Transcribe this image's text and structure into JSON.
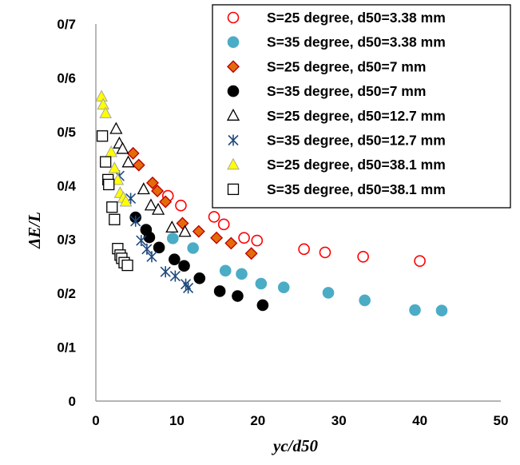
{
  "chart_data": {
    "type": "scatter",
    "title": "",
    "xlabel": "yc/d50",
    "ylabel": "ΔE/L",
    "xlim": [
      0,
      50
    ],
    "ylim": [
      0,
      0.7
    ],
    "x_ticks": [
      0,
      10,
      20,
      30,
      40,
      50
    ],
    "y_ticks": [
      {
        "value": 0,
        "label": "0"
      },
      {
        "value": 0.1,
        "label": "0/1"
      },
      {
        "value": 0.2,
        "label": "0/2"
      },
      {
        "value": 0.3,
        "label": "0/3"
      },
      {
        "value": 0.4,
        "label": "0/4"
      },
      {
        "value": 0.5,
        "label": "0/5"
      },
      {
        "value": 0.6,
        "label": "0/6"
      },
      {
        "value": 0.7,
        "label": "0/7"
      }
    ],
    "grid": false,
    "legend_position": "top-right",
    "series": [
      {
        "name": "S=25 degree, d50=3.38 mm",
        "marker": "circle-open",
        "color": "#ff0000",
        "points": [
          [
            8.9,
            0.381
          ],
          [
            10.5,
            0.363
          ],
          [
            14.6,
            0.342
          ],
          [
            15.8,
            0.328
          ],
          [
            18.3,
            0.303
          ],
          [
            19.9,
            0.298
          ],
          [
            25.7,
            0.282
          ],
          [
            28.3,
            0.276
          ],
          [
            33.0,
            0.268
          ],
          [
            40.0,
            0.26
          ]
        ]
      },
      {
        "name": "S=35 degree, d50=3.38 mm",
        "marker": "circle-filled",
        "color": "#4bacc6",
        "points": [
          [
            9.5,
            0.302
          ],
          [
            12.0,
            0.284
          ],
          [
            16.0,
            0.242
          ],
          [
            18.0,
            0.236
          ],
          [
            20.4,
            0.218
          ],
          [
            23.2,
            0.211
          ],
          [
            28.7,
            0.201
          ],
          [
            33.2,
            0.187
          ],
          [
            39.4,
            0.169
          ],
          [
            42.7,
            0.168
          ]
        ]
      },
      {
        "name": "S=25 degree, d50=7 mm",
        "marker": "diamond",
        "color": "#e36c09",
        "edge": "#c00000",
        "points": [
          [
            4.6,
            0.46
          ],
          [
            5.3,
            0.438
          ],
          [
            7.0,
            0.405
          ],
          [
            7.6,
            0.39
          ],
          [
            8.6,
            0.37
          ],
          [
            10.7,
            0.33
          ],
          [
            12.7,
            0.315
          ],
          [
            14.9,
            0.303
          ],
          [
            16.7,
            0.293
          ],
          [
            19.2,
            0.274
          ]
        ]
      },
      {
        "name": "S=35 degree, d50=7 mm",
        "marker": "circle-filled",
        "color": "#000000",
        "points": [
          [
            4.9,
            0.341
          ],
          [
            6.2,
            0.318
          ],
          [
            6.6,
            0.304
          ],
          [
            7.8,
            0.285
          ],
          [
            9.7,
            0.263
          ],
          [
            10.9,
            0.251
          ],
          [
            12.8,
            0.228
          ],
          [
            15.3,
            0.204
          ],
          [
            17.5,
            0.195
          ],
          [
            20.6,
            0.178
          ]
        ]
      },
      {
        "name": "S=25 degree, d50=12.7 mm",
        "marker": "triangle-open",
        "color": "#000000",
        "points": [
          [
            2.5,
            0.505
          ],
          [
            2.9,
            0.478
          ],
          [
            3.3,
            0.468
          ],
          [
            4.0,
            0.443
          ],
          [
            5.9,
            0.393
          ],
          [
            6.8,
            0.363
          ],
          [
            7.7,
            0.355
          ],
          [
            9.4,
            0.322
          ],
          [
            11.0,
            0.314
          ]
        ]
      },
      {
        "name": "S=35 degree, d50=12.7 mm",
        "marker": "asterisk",
        "color": "#1f497d",
        "points": [
          [
            2.9,
            0.418
          ],
          [
            4.3,
            0.376
          ],
          [
            4.9,
            0.334
          ],
          [
            5.6,
            0.298
          ],
          [
            6.3,
            0.282
          ],
          [
            6.9,
            0.268
          ],
          [
            8.6,
            0.24
          ],
          [
            9.8,
            0.232
          ],
          [
            11.1,
            0.217
          ],
          [
            11.4,
            0.21
          ]
        ]
      },
      {
        "name": "S=25 degree, d50=38.1 mm",
        "marker": "triangle-filled",
        "color": "#ffff00",
        "edge": "#a6a6a6",
        "points": [
          [
            0.7,
            0.565
          ],
          [
            0.9,
            0.55
          ],
          [
            1.2,
            0.534
          ],
          [
            1.9,
            0.462
          ],
          [
            2.3,
            0.432
          ],
          [
            2.7,
            0.41
          ],
          [
            3.0,
            0.386
          ],
          [
            3.4,
            0.377
          ],
          [
            3.7,
            0.37
          ]
        ]
      },
      {
        "name": "S=35 degree, d50=38.1 mm",
        "marker": "square-open",
        "color": "#000000",
        "points": [
          [
            0.8,
            0.492
          ],
          [
            1.2,
            0.444
          ],
          [
            1.5,
            0.411
          ],
          [
            1.6,
            0.402
          ],
          [
            2.0,
            0.36
          ],
          [
            2.3,
            0.337
          ],
          [
            2.7,
            0.283
          ],
          [
            3.0,
            0.271
          ],
          [
            3.2,
            0.265
          ],
          [
            3.5,
            0.257
          ],
          [
            3.9,
            0.252
          ]
        ]
      }
    ]
  }
}
